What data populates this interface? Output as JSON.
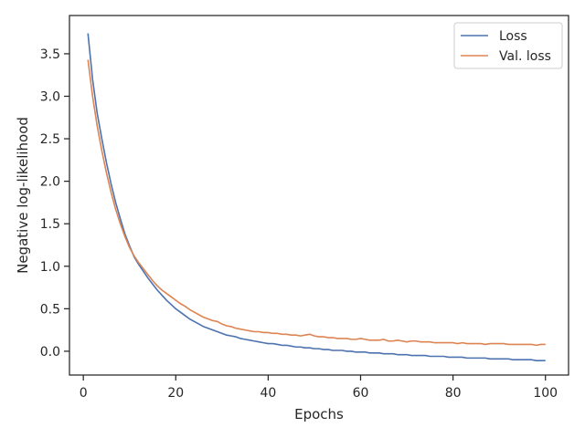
{
  "chart_data": {
    "type": "line",
    "title": "",
    "xlabel": "Epochs",
    "ylabel": "Negative log-likelihood",
    "xlim": [
      -3,
      105
    ],
    "ylim": [
      -0.28,
      3.95
    ],
    "xticks": [
      0,
      20,
      40,
      60,
      80,
      100
    ],
    "xtick_labels": [
      "0",
      "20",
      "40",
      "60",
      "80",
      "100"
    ],
    "yticks": [
      0.0,
      0.5,
      1.0,
      1.5,
      2.0,
      2.5,
      3.0,
      3.5
    ],
    "ytick_labels": [
      "0.0",
      "0.5",
      "1.0",
      "1.5",
      "2.0",
      "2.5",
      "3.0",
      "3.5"
    ],
    "grid": false,
    "legend_position": "top-right",
    "x": [
      1,
      2,
      3,
      4,
      5,
      6,
      7,
      8,
      9,
      10,
      11,
      12,
      13,
      14,
      15,
      16,
      17,
      18,
      19,
      20,
      21,
      22,
      23,
      24,
      25,
      26,
      27,
      28,
      29,
      30,
      31,
      32,
      33,
      34,
      35,
      36,
      37,
      38,
      39,
      40,
      41,
      42,
      43,
      44,
      45,
      46,
      47,
      48,
      49,
      50,
      51,
      52,
      53,
      54,
      55,
      56,
      57,
      58,
      59,
      60,
      61,
      62,
      63,
      64,
      65,
      66,
      67,
      68,
      69,
      70,
      71,
      72,
      73,
      74,
      75,
      76,
      77,
      78,
      79,
      80,
      81,
      82,
      83,
      84,
      85,
      86,
      87,
      88,
      89,
      90,
      91,
      92,
      93,
      94,
      95,
      96,
      97,
      98,
      99,
      100
    ],
    "series": [
      {
        "name": "Loss",
        "color": "#4c72b0",
        "values": [
          3.74,
          3.2,
          2.8,
          2.5,
          2.22,
          1.97,
          1.75,
          1.56,
          1.38,
          1.24,
          1.11,
          1.02,
          0.94,
          0.86,
          0.79,
          0.72,
          0.66,
          0.6,
          0.55,
          0.5,
          0.46,
          0.42,
          0.38,
          0.35,
          0.32,
          0.29,
          0.27,
          0.25,
          0.23,
          0.21,
          0.19,
          0.18,
          0.17,
          0.15,
          0.14,
          0.13,
          0.12,
          0.11,
          0.1,
          0.09,
          0.09,
          0.08,
          0.07,
          0.07,
          0.06,
          0.05,
          0.05,
          0.04,
          0.04,
          0.03,
          0.03,
          0.02,
          0.02,
          0.01,
          0.01,
          0.01,
          0.0,
          0.0,
          -0.01,
          -0.01,
          -0.01,
          -0.02,
          -0.02,
          -0.02,
          -0.03,
          -0.03,
          -0.03,
          -0.04,
          -0.04,
          -0.04,
          -0.05,
          -0.05,
          -0.05,
          -0.05,
          -0.06,
          -0.06,
          -0.06,
          -0.06,
          -0.07,
          -0.07,
          -0.07,
          -0.07,
          -0.08,
          -0.08,
          -0.08,
          -0.08,
          -0.08,
          -0.09,
          -0.09,
          -0.09,
          -0.09,
          -0.09,
          -0.1,
          -0.1,
          -0.1,
          -0.1,
          -0.1,
          -0.11,
          -0.11,
          -0.11
        ]
      },
      {
        "name": "Val. loss",
        "color": "#dd8452",
        "values": [
          3.43,
          3.0,
          2.65,
          2.36,
          2.1,
          1.87,
          1.67,
          1.5,
          1.35,
          1.22,
          1.12,
          1.04,
          0.97,
          0.9,
          0.83,
          0.77,
          0.72,
          0.68,
          0.64,
          0.6,
          0.56,
          0.53,
          0.49,
          0.46,
          0.43,
          0.4,
          0.38,
          0.36,
          0.35,
          0.32,
          0.3,
          0.29,
          0.27,
          0.26,
          0.25,
          0.24,
          0.23,
          0.23,
          0.22,
          0.22,
          0.21,
          0.21,
          0.2,
          0.2,
          0.19,
          0.19,
          0.18,
          0.19,
          0.2,
          0.18,
          0.17,
          0.17,
          0.16,
          0.16,
          0.15,
          0.15,
          0.15,
          0.14,
          0.14,
          0.15,
          0.14,
          0.13,
          0.13,
          0.13,
          0.14,
          0.12,
          0.12,
          0.13,
          0.12,
          0.11,
          0.12,
          0.12,
          0.11,
          0.11,
          0.11,
          0.1,
          0.1,
          0.1,
          0.1,
          0.1,
          0.09,
          0.1,
          0.09,
          0.09,
          0.09,
          0.09,
          0.08,
          0.09,
          0.09,
          0.09,
          0.09,
          0.08,
          0.08,
          0.08,
          0.08,
          0.08,
          0.08,
          0.07,
          0.08,
          0.08
        ]
      }
    ]
  }
}
